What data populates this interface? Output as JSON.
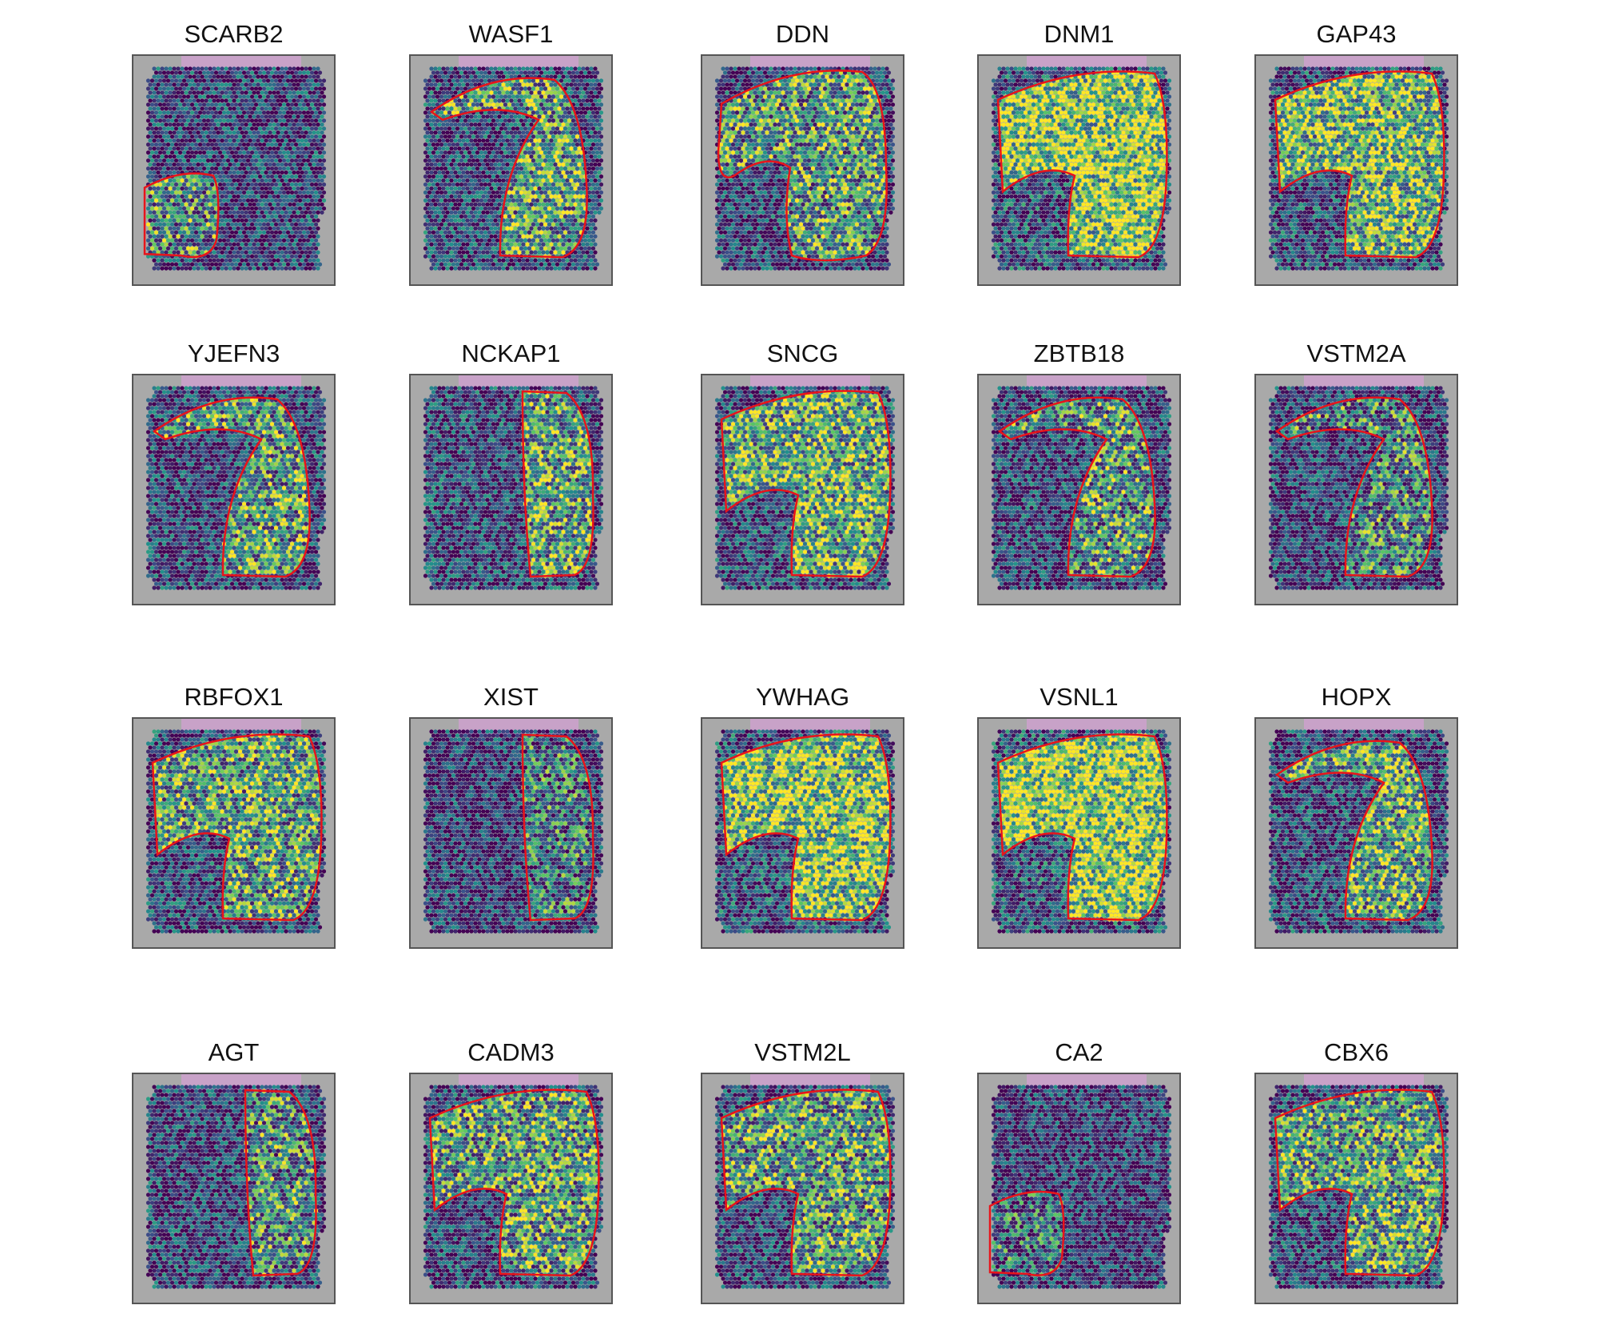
{
  "figure": {
    "panels": [
      {
        "gene": "SCARB2"
      },
      {
        "gene": "WASF1"
      },
      {
        "gene": "DDN"
      },
      {
        "gene": "DNM1"
      },
      {
        "gene": "GAP43"
      },
      {
        "gene": "YJEFN3"
      },
      {
        "gene": "NCKAP1"
      },
      {
        "gene": "SNCG"
      },
      {
        "gene": "ZBTB18"
      },
      {
        "gene": "VSTM2A"
      },
      {
        "gene": "RBFOX1"
      },
      {
        "gene": "XIST"
      },
      {
        "gene": "YWHAG"
      },
      {
        "gene": "VSNL1"
      },
      {
        "gene": "HOPX"
      },
      {
        "gene": "AGT"
      },
      {
        "gene": "CADM3"
      },
      {
        "gene": "VSTM2L"
      },
      {
        "gene": "CA2"
      },
      {
        "gene": "CBX6"
      }
    ],
    "colors": {
      "background": "#a9a9a9",
      "region_outline": "#e8141b",
      "low_expression": "#440154",
      "mid_expression": "#21918c",
      "high_expression": "#fde725",
      "top_band": "#c8a2c8"
    }
  }
}
